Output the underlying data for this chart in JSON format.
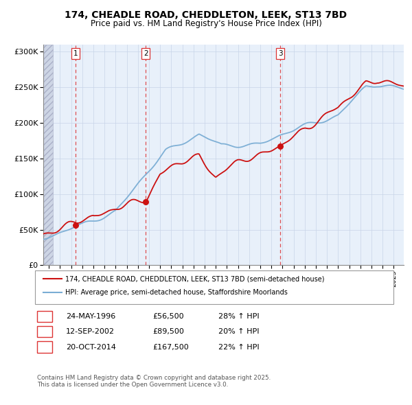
{
  "title1": "174, CHEADLE ROAD, CHEDDLETON, LEEK, ST13 7BD",
  "title2": "Price paid vs. HM Land Registry's House Price Index (HPI)",
  "legend_line1": "174, CHEADLE ROAD, CHEDDLETON, LEEK, ST13 7BD (semi-detached house)",
  "legend_line2": "HPI: Average price, semi-detached house, Staffordshire Moorlands",
  "sale_labels": [
    "1",
    "2",
    "3"
  ],
  "sale_dates_num": [
    1996.38,
    2002.71,
    2014.8
  ],
  "sale_prices": [
    56500,
    89500,
    167500
  ],
  "sale_date_strs": [
    "24-MAY-1996",
    "12-SEP-2002",
    "20-OCT-2014"
  ],
  "sale_price_strs": [
    "£56,500",
    "£89,500",
    "£167,500"
  ],
  "sale_pct_strs": [
    "28% ↑ HPI",
    "20% ↑ HPI",
    "22% ↑ HPI"
  ],
  "ylim": [
    0,
    310000
  ],
  "xlim_start": 1993.5,
  "xlim_end": 2025.9,
  "hpi_color": "#7aadd4",
  "price_color": "#cc1111",
  "sale_dot_color": "#cc1111",
  "dashed_line_color": "#dd3333",
  "grid_color": "#c8d4e8",
  "bg_color": "#e8f0fa",
  "hatch_color": "#c8d0e0",
  "footer_text": "Contains HM Land Registry data © Crown copyright and database right 2025.\nThis data is licensed under the Open Government Licence v3.0."
}
